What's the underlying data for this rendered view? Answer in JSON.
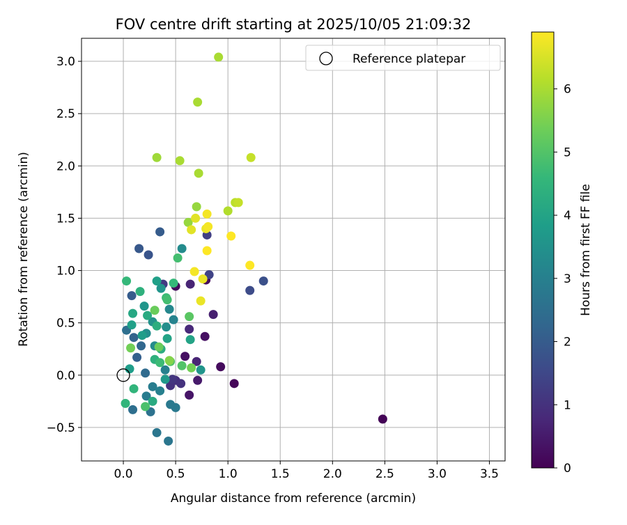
{
  "chart_data": {
    "type": "scatter",
    "title": "FOV centre drift starting at 2025/10/05 21:09:32",
    "xlabel": "Angular distance from reference (arcmin)",
    "ylabel": "Rotation from reference (arcmin)",
    "xlim": [
      -0.4,
      3.65
    ],
    "ylim": [
      -0.82,
      3.22
    ],
    "xticks": [
      0.0,
      0.5,
      1.0,
      1.5,
      2.0,
      2.5,
      3.0,
      3.5
    ],
    "xtick_labels": [
      "0.0",
      "0.5",
      "1.0",
      "1.5",
      "2.0",
      "2.5",
      "3.0",
      "3.5"
    ],
    "yticks": [
      -0.5,
      0.0,
      0.5,
      1.0,
      1.5,
      2.0,
      2.5,
      3.0
    ],
    "ytick_labels": [
      "−0.5",
      "0.0",
      "0.5",
      "1.0",
      "1.5",
      "2.0",
      "2.5",
      "3.0"
    ],
    "grid": true,
    "legend": {
      "position": "top-right",
      "entries": [
        "Reference platepar"
      ]
    },
    "reference_point": {
      "x": 0.0,
      "y": 0.0
    },
    "colorbar": {
      "label": "Hours from first FF file",
      "range": [
        0,
        6.9
      ],
      "ticks": [
        0,
        1,
        2,
        3,
        4,
        5,
        6
      ],
      "tick_labels": [
        "0",
        "1",
        "2",
        "3",
        "4",
        "5",
        "6"
      ],
      "colormap": [
        "#440154",
        "#482878",
        "#3e4989",
        "#31688e",
        "#26828e",
        "#1f9e89",
        "#35b779",
        "#6ece58",
        "#b5de2b",
        "#fde725"
      ]
    },
    "points": [
      {
        "x": 2.48,
        "y": -0.42,
        "c": 0.05
      },
      {
        "x": 1.06,
        "y": -0.08,
        "c": 0.1
      },
      {
        "x": 0.93,
        "y": 0.08,
        "c": 0.2
      },
      {
        "x": 0.79,
        "y": 0.91,
        "c": 0.2
      },
      {
        "x": 0.5,
        "y": 0.85,
        "c": 0.2
      },
      {
        "x": 0.78,
        "y": 0.37,
        "c": 0.3
      },
      {
        "x": 0.59,
        "y": 0.18,
        "c": 0.3
      },
      {
        "x": 0.63,
        "y": -0.19,
        "c": 0.4
      },
      {
        "x": 0.71,
        "y": -0.05,
        "c": 0.5
      },
      {
        "x": 0.86,
        "y": 0.58,
        "c": 0.6
      },
      {
        "x": 0.64,
        "y": 0.87,
        "c": 0.7
      },
      {
        "x": 0.7,
        "y": 0.13,
        "c": 0.7
      },
      {
        "x": 0.63,
        "y": 0.44,
        "c": 0.8
      },
      {
        "x": 0.5,
        "y": -0.05,
        "c": 0.9
      },
      {
        "x": 0.55,
        "y": -0.08,
        "c": 1.0
      },
      {
        "x": 0.45,
        "y": -0.1,
        "c": 1.0
      },
      {
        "x": 0.47,
        "y": -0.04,
        "c": 1.1
      },
      {
        "x": 0.38,
        "y": 0.87,
        "c": 1.2
      },
      {
        "x": 0.8,
        "y": 1.34,
        "c": 1.3
      },
      {
        "x": 0.82,
        "y": 0.96,
        "c": 1.4
      },
      {
        "x": 1.21,
        "y": 0.81,
        "c": 1.6
      },
      {
        "x": 1.34,
        "y": 0.9,
        "c": 1.7
      },
      {
        "x": 0.24,
        "y": 1.15,
        "c": 1.8
      },
      {
        "x": 0.15,
        "y": 1.21,
        "c": 1.9
      },
      {
        "x": 0.35,
        "y": 1.37,
        "c": 2.0
      },
      {
        "x": 0.08,
        "y": 0.76,
        "c": 2.0
      },
      {
        "x": 0.13,
        "y": 0.17,
        "c": 2.1
      },
      {
        "x": 0.1,
        "y": 0.36,
        "c": 2.2
      },
      {
        "x": 0.17,
        "y": 0.28,
        "c": 2.3
      },
      {
        "x": 0.21,
        "y": 0.02,
        "c": 2.4
      },
      {
        "x": 0.03,
        "y": 0.43,
        "c": 2.5
      },
      {
        "x": 0.09,
        "y": -0.33,
        "c": 2.5
      },
      {
        "x": 0.26,
        "y": -0.35,
        "c": 2.6
      },
      {
        "x": 0.32,
        "y": -0.55,
        "c": 2.7
      },
      {
        "x": 0.43,
        "y": -0.63,
        "c": 2.7
      },
      {
        "x": 0.5,
        "y": -0.31,
        "c": 2.8
      },
      {
        "x": 0.45,
        "y": -0.28,
        "c": 2.8
      },
      {
        "x": 0.22,
        "y": -0.2,
        "c": 2.9
      },
      {
        "x": 0.28,
        "y": -0.11,
        "c": 2.9
      },
      {
        "x": 0.35,
        "y": -0.15,
        "c": 3.0
      },
      {
        "x": 0.4,
        "y": 0.05,
        "c": 3.0
      },
      {
        "x": 0.48,
        "y": 0.53,
        "c": 3.1
      },
      {
        "x": 0.44,
        "y": 0.63,
        "c": 3.2
      },
      {
        "x": 0.56,
        "y": 1.21,
        "c": 3.3
      },
      {
        "x": 0.3,
        "y": 0.28,
        "c": 3.3
      },
      {
        "x": 0.22,
        "y": 0.4,
        "c": 3.4
      },
      {
        "x": 0.41,
        "y": 0.46,
        "c": 3.4
      },
      {
        "x": 0.28,
        "y": 0.51,
        "c": 3.5
      },
      {
        "x": 0.2,
        "y": 0.66,
        "c": 3.6
      },
      {
        "x": 0.36,
        "y": 0.83,
        "c": 3.6
      },
      {
        "x": 0.74,
        "y": 0.05,
        "c": 3.6
      },
      {
        "x": 0.4,
        "y": -0.04,
        "c": 3.7
      },
      {
        "x": 0.18,
        "y": 0.38,
        "c": 3.8
      },
      {
        "x": 0.06,
        "y": 0.06,
        "c": 3.8
      },
      {
        "x": 0.08,
        "y": 0.48,
        "c": 3.9
      },
      {
        "x": 0.32,
        "y": 0.9,
        "c": 3.9
      },
      {
        "x": 0.42,
        "y": 0.35,
        "c": 4.0
      },
      {
        "x": 0.64,
        "y": 0.34,
        "c": 4.0
      },
      {
        "x": 0.09,
        "y": 0.59,
        "c": 4.1
      },
      {
        "x": 0.23,
        "y": 0.57,
        "c": 4.2
      },
      {
        "x": 0.28,
        "y": -0.25,
        "c": 4.2
      },
      {
        "x": 0.36,
        "y": 0.25,
        "c": 4.3
      },
      {
        "x": 0.32,
        "y": 0.47,
        "c": 4.3
      },
      {
        "x": 0.16,
        "y": 0.8,
        "c": 4.4
      },
      {
        "x": 0.3,
        "y": 0.15,
        "c": 4.4
      },
      {
        "x": 0.1,
        "y": -0.13,
        "c": 4.5
      },
      {
        "x": 0.02,
        "y": -0.27,
        "c": 4.5
      },
      {
        "x": 0.03,
        "y": 0.9,
        "c": 4.6
      },
      {
        "x": 0.48,
        "y": 0.88,
        "c": 4.6
      },
      {
        "x": 0.41,
        "y": 0.74,
        "c": 4.7
      },
      {
        "x": 0.35,
        "y": 0.12,
        "c": 4.7
      },
      {
        "x": 0.52,
        "y": 1.12,
        "c": 4.8
      },
      {
        "x": 0.42,
        "y": 0.72,
        "c": 4.8
      },
      {
        "x": 0.21,
        "y": -0.3,
        "c": 4.9
      },
      {
        "x": 0.45,
        "y": 0.13,
        "c": 5.0
      },
      {
        "x": 0.56,
        "y": 0.09,
        "c": 5.0
      },
      {
        "x": 0.63,
        "y": 0.56,
        "c": 5.1
      },
      {
        "x": 0.3,
        "y": 0.62,
        "c": 5.3
      },
      {
        "x": 0.34,
        "y": 0.27,
        "c": 5.3
      },
      {
        "x": 0.07,
        "y": 0.26,
        "c": 5.4
      },
      {
        "x": 0.65,
        "y": 0.07,
        "c": 5.4
      },
      {
        "x": 0.44,
        "y": 0.14,
        "c": 5.6
      },
      {
        "x": 0.62,
        "y": 1.46,
        "c": 5.8
      },
      {
        "x": 0.7,
        "y": 1.61,
        "c": 5.8
      },
      {
        "x": 0.32,
        "y": 2.08,
        "c": 5.9
      },
      {
        "x": 0.54,
        "y": 2.05,
        "c": 6.0
      },
      {
        "x": 0.72,
        "y": 1.93,
        "c": 6.0
      },
      {
        "x": 0.71,
        "y": 2.61,
        "c": 6.0
      },
      {
        "x": 0.91,
        "y": 3.04,
        "c": 6.0
      },
      {
        "x": 1.0,
        "y": 1.57,
        "c": 6.1
      },
      {
        "x": 1.07,
        "y": 1.65,
        "c": 6.2
      },
      {
        "x": 1.1,
        "y": 1.65,
        "c": 6.3
      },
      {
        "x": 1.22,
        "y": 2.08,
        "c": 6.3
      },
      {
        "x": 0.69,
        "y": 1.5,
        "c": 6.6
      },
      {
        "x": 0.65,
        "y": 1.39,
        "c": 6.6
      },
      {
        "x": 0.79,
        "y": 1.4,
        "c": 6.7
      },
      {
        "x": 0.76,
        "y": 0.92,
        "c": 6.7
      },
      {
        "x": 0.74,
        "y": 0.71,
        "c": 6.7
      },
      {
        "x": 0.68,
        "y": 0.99,
        "c": 6.8
      },
      {
        "x": 0.81,
        "y": 1.42,
        "c": 6.8
      },
      {
        "x": 0.8,
        "y": 1.54,
        "c": 6.8
      },
      {
        "x": 0.8,
        "y": 1.19,
        "c": 6.9
      },
      {
        "x": 1.03,
        "y": 1.33,
        "c": 6.9
      },
      {
        "x": 1.21,
        "y": 1.05,
        "c": 6.9
      }
    ]
  }
}
